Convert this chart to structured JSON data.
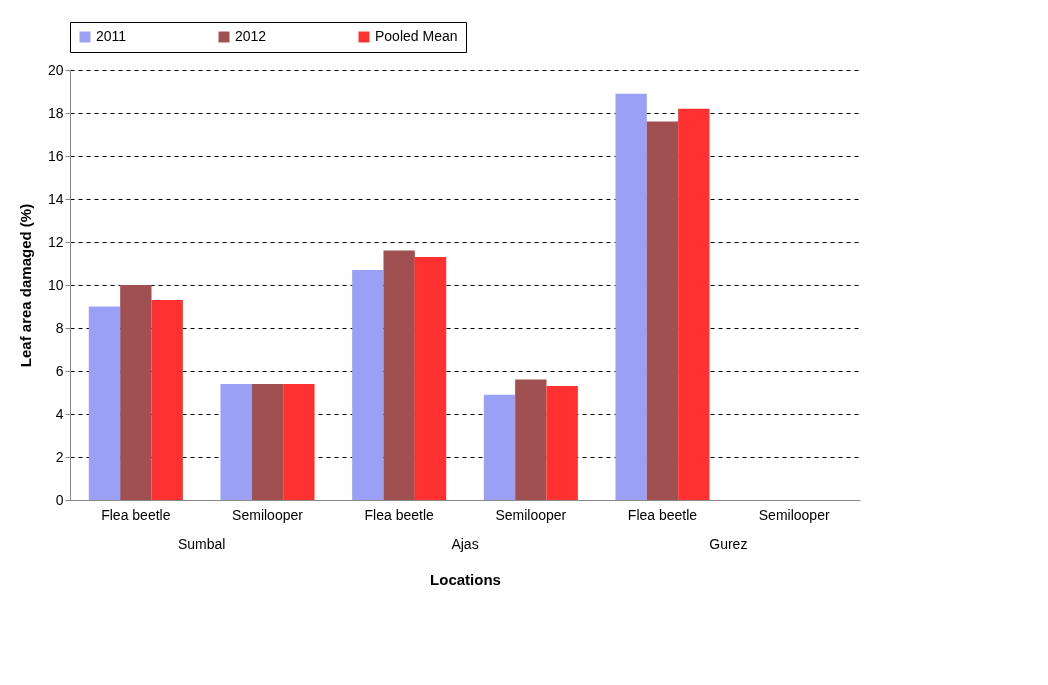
{
  "chart_data": {
    "type": "bar",
    "xlabel": "Locations",
    "ylabel": "Leaf area damaged (%)",
    "categories": [
      "Flea beetle",
      "Semilooper",
      "Flea beetle",
      "Semilooper",
      "Flea beetle",
      "Semilooper"
    ],
    "series": [
      {
        "name": "2011",
        "color": "#9aa0f5",
        "values": [
          9.0,
          5.4,
          10.7,
          4.9,
          18.9,
          0
        ]
      },
      {
        "name": "2012",
        "color": "#a05050",
        "values": [
          10.0,
          5.4,
          11.6,
          5.6,
          17.6,
          0
        ]
      },
      {
        "name": "Pooled Mean",
        "color": "#ff3030",
        "values": [
          9.3,
          5.4,
          11.3,
          5.3,
          18.2,
          0
        ]
      }
    ],
    "annotations": [
      "Sumbal",
      "Ajas",
      "Gurez"
    ],
    "ylim": [
      0,
      20
    ],
    "yticks": [
      0,
      2,
      4,
      6,
      8,
      10,
      12,
      14,
      16,
      18,
      20
    ],
    "grid": "y",
    "legend": "top"
  }
}
